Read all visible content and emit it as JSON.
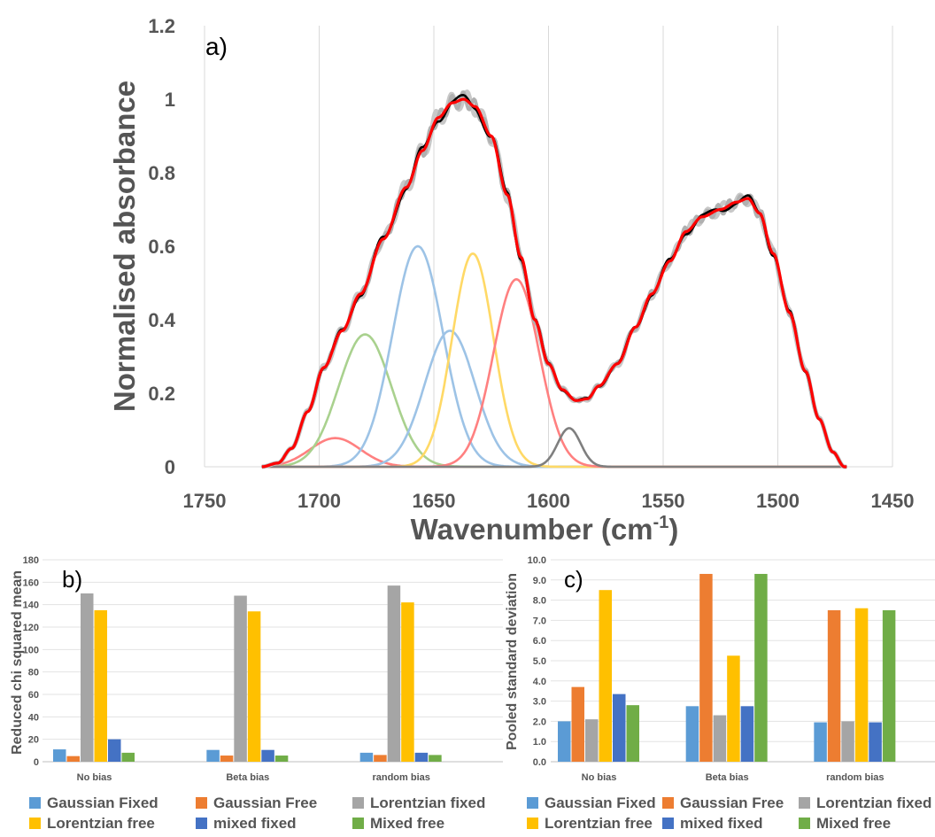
{
  "colors": {
    "gaussian_fixed": "#5b9bd5",
    "gaussian_free": "#ed7d31",
    "lorentzian_fixed": "#a5a5a5",
    "lorentzian_free": "#ffc000",
    "mixed_fixed": "#4472c4",
    "mixed_free": "#70ad47",
    "fit_red": "#ff0000",
    "data_black": "#000000",
    "data_grey": "#b8b8b8"
  },
  "chart_data": [
    {
      "panel_label": "a)",
      "type": "line",
      "xlabel_main": "Wavenumber (cm",
      "xlabel_sup": "-1",
      "xlabel_close": ")",
      "ylabel": "Normalised absorbance",
      "xlim": [
        1750,
        1450
      ],
      "ylim": [
        0,
        1.2
      ],
      "x_ticks": [
        "1750",
        "1700",
        "1650",
        "1600",
        "1550",
        "1500",
        "1450"
      ],
      "y_ticks": [
        "0",
        "0.2",
        "0.4",
        "0.6",
        "0.8",
        "1",
        "1.2"
      ],
      "x_range_plotted": [
        1725,
        1470
      ],
      "component_peaks": [
        {
          "color": "#ff8080",
          "center": 1693,
          "height": 0.078,
          "width": 11
        },
        {
          "color": "#a9d18e",
          "center": 1680,
          "height": 0.36,
          "width": 11.5
        },
        {
          "color": "#9dc3e6",
          "center": 1657,
          "height": 0.6,
          "width": 11
        },
        {
          "color": "#9dc3e6",
          "center": 1643,
          "height": 0.37,
          "width": 11
        },
        {
          "color": "#ffd966",
          "center": 1633,
          "height": 0.58,
          "width": 9
        },
        {
          "color": "#ff8080",
          "center": 1614,
          "height": 0.51,
          "width": 10
        },
        {
          "color": "#7f7f7f",
          "center": 1591,
          "height": 0.105,
          "width": 5
        }
      ]
    },
    {
      "panel_label": "b)",
      "type": "bar",
      "ylabel": "Reduced chi squared  mean",
      "categories": [
        "No bias",
        "Beta bias",
        "random bias"
      ],
      "ylim": [
        0,
        180
      ],
      "y_ticks": [
        "0",
        "20",
        "40",
        "60",
        "80",
        "100",
        "120",
        "140",
        "160",
        "180"
      ],
      "series": [
        {
          "name": "Gaussian Fixed",
          "values": [
            11,
            10.5,
            8
          ]
        },
        {
          "name": "Gaussian Free",
          "values": [
            5,
            5.5,
            6
          ]
        },
        {
          "name": "Lorentzian fixed",
          "values": [
            150,
            148,
            157
          ]
        },
        {
          "name": "Lorentzian free",
          "values": [
            135,
            134,
            142
          ]
        },
        {
          "name": "mixed fixed",
          "values": [
            20,
            10.5,
            8
          ]
        },
        {
          "name": "Mixed free",
          "values": [
            8,
            5.5,
            6
          ]
        }
      ]
    },
    {
      "panel_label": "c)",
      "type": "bar",
      "ylabel": "Pooled standard deviation",
      "categories": [
        "No bias",
        "Beta bias",
        "random bias"
      ],
      "ylim": [
        0,
        10
      ],
      "y_ticks": [
        "0.0",
        "1.0",
        "2.0",
        "3.0",
        "4.0",
        "5.0",
        "6.0",
        "7.0",
        "8.0",
        "9.0",
        "10.0"
      ],
      "series": [
        {
          "name": "Gaussian Fixed",
          "values": [
            2.0,
            2.75,
            1.95
          ]
        },
        {
          "name": "Gaussian Free",
          "values": [
            3.7,
            9.3,
            7.5
          ]
        },
        {
          "name": "Lorentzian fixed",
          "values": [
            2.1,
            2.3,
            2.0
          ]
        },
        {
          "name": "Lorentzian free",
          "values": [
            8.5,
            5.25,
            7.6
          ]
        },
        {
          "name": "mixed fixed",
          "values": [
            3.35,
            2.75,
            1.95
          ]
        },
        {
          "name": "Mixed free",
          "values": [
            2.8,
            9.3,
            7.5
          ]
        }
      ]
    }
  ]
}
